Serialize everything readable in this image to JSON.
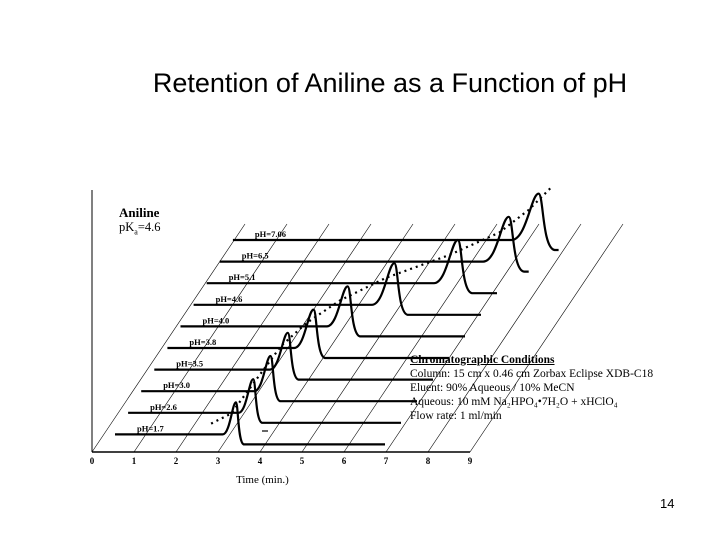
{
  "slide": {
    "title": "Retention of Aniline as a Function of pH",
    "page_number": "14"
  },
  "analyte": {
    "name": "Aniline",
    "pka_label": "pK",
    "pka_sub": "a",
    "pka_value": "=4.6"
  },
  "conditions": {
    "heading": "Chromatographic Conditions",
    "column": "Column:  15 cm x 0.46 cm Zorbax Eclipse XDB-C18",
    "eluent": "Eluent:   90% Aqueous / 10% MeCN",
    "aqueous": "Aqueous: 10 mM Na₂HPO₄•7H₂O + xHClO₄",
    "flow": "Flow rate: 1 ml/min"
  },
  "chart_data": {
    "type": "line",
    "title": "Retention of Aniline as a Function of pH",
    "xlabel": "Time (min.)",
    "ylabel": "",
    "x_ticks": [
      "0",
      "1",
      "2",
      "3",
      "4",
      "5",
      "6",
      "7",
      "8",
      "9"
    ],
    "xlim": [
      0,
      9
    ],
    "grid": true,
    "trend_line": "dotted",
    "series": [
      {
        "name": "pH=1.7",
        "retention_min": 3.4
      },
      {
        "name": "pH=2.6",
        "retention_min": 3.5
      },
      {
        "name": "pH=3.0",
        "retention_min": 3.6
      },
      {
        "name": "pH=3.5",
        "retention_min": 3.7
      },
      {
        "name": "pH=3.8",
        "retention_min": 4.0
      },
      {
        "name": "pH=4.0",
        "retention_min": 4.5
      },
      {
        "name": "pH=4.6",
        "retention_min": 5.3
      },
      {
        "name": "pH=5.1",
        "retention_min": 6.5
      },
      {
        "name": "pH=6.5",
        "retention_min": 7.4
      },
      {
        "name": "pH=7.06",
        "retention_min": 7.8
      }
    ]
  },
  "colors": {
    "ink": "#000000",
    "background": "#ffffff"
  }
}
